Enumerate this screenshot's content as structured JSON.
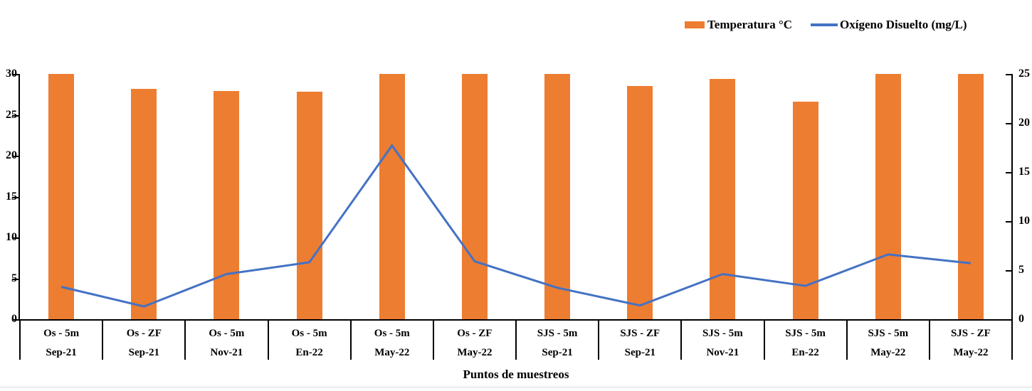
{
  "chart_data": {
    "type": "combo",
    "categories": [
      {
        "site": "Os - 5m",
        "period": "Sep-21"
      },
      {
        "site": "Os - ZF",
        "period": "Sep-21"
      },
      {
        "site": "Os - 5m",
        "period": "Nov-21"
      },
      {
        "site": "Os - 5m",
        "period": "En-22"
      },
      {
        "site": "Os - 5m",
        "period": "May-22"
      },
      {
        "site": "Os - ZF",
        "period": "May-22"
      },
      {
        "site": "SJS - 5m",
        "period": "Sep-21"
      },
      {
        "site": "SJS - ZF",
        "period": "Sep-21"
      },
      {
        "site": "SJS - 5m",
        "period": "Nov-21"
      },
      {
        "site": "SJS - 5m",
        "period": "En-22"
      },
      {
        "site": "SJS - 5m",
        "period": "May-22"
      },
      {
        "site": "SJS - ZF",
        "period": "May-22"
      }
    ],
    "series": [
      {
        "name": "Temperatura °C",
        "chart_type": "bar",
        "y_axis": "left",
        "color": "#ED7D31",
        "values": [
          30.0,
          28.2,
          27.9,
          27.8,
          30.0,
          30.0,
          30.0,
          28.5,
          29.4,
          26.6,
          30.0,
          30.0
        ]
      },
      {
        "name": "Oxígeno Disuelto (mg/L)",
        "chart_type": "line",
        "y_axis": "right",
        "color": "#4472C4",
        "values": [
          3.3,
          1.3,
          4.6,
          5.8,
          17.7,
          5.9,
          3.2,
          1.4,
          4.6,
          3.4,
          6.6,
          5.7
        ]
      }
    ],
    "left_axis": {
      "min": 0,
      "max": 30,
      "tick_step": 5,
      "ticks": [
        0,
        5,
        10,
        15,
        20,
        25,
        30
      ]
    },
    "right_axis": {
      "min": 0,
      "max": 25,
      "tick_step": 5,
      "ticks": [
        0,
        5,
        10,
        15,
        20,
        25
      ]
    },
    "xlabel": "Puntos de muestreos",
    "grid": false,
    "legend_position": "top-right",
    "axis_color": "#000000",
    "background_color": "#ffffff"
  }
}
